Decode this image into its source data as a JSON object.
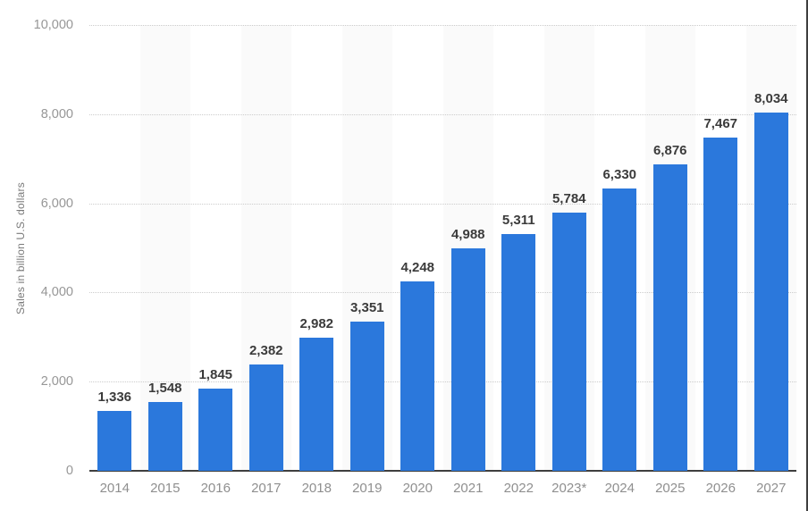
{
  "chart_data": {
    "type": "bar",
    "title": "",
    "xlabel": "",
    "ylabel": "Sales in billion U.S. dollars",
    "categories": [
      "2014",
      "2015",
      "2016",
      "2017",
      "2018",
      "2019",
      "2020",
      "2021",
      "2022",
      "2023*",
      "2024",
      "2025",
      "2026",
      "2027"
    ],
    "values": [
      1336,
      1548,
      1845,
      2382,
      2982,
      3351,
      4248,
      4988,
      5311,
      5784,
      6330,
      6876,
      7467,
      8034
    ],
    "value_labels": [
      "1,336",
      "1,548",
      "1,845",
      "2,382",
      "2,982",
      "3,351",
      "4,248",
      "4,988",
      "5,311",
      "5,784",
      "6,330",
      "6,876",
      "7,467",
      "8,034"
    ],
    "ylim": [
      0,
      10000
    ],
    "yticks": [
      0,
      2000,
      4000,
      6000,
      8000,
      10000
    ],
    "ytick_labels": [
      "0",
      "2,000",
      "4,000",
      "6,000",
      "8,000",
      "10,000"
    ],
    "grid": "horizontal-dotted",
    "legend": "none",
    "bar_color": "#2b78dc",
    "band_color": "#fafafa",
    "band_columns": "alternating, starting at second column",
    "axis_line_color": "#3f3f3f"
  }
}
